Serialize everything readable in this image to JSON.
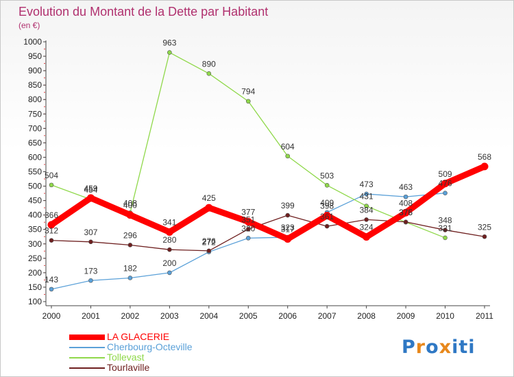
{
  "title": "Evolution du Montant de la Dette par Habitant",
  "subtitle": "(en €)",
  "logo": {
    "letters": [
      "P",
      "r",
      "o",
      "x",
      "i",
      "t",
      "i"
    ],
    "colors": [
      "#2f78c4",
      "#e8881c",
      "#2f78c4",
      "#e8881c",
      "#2f78c4",
      "#2f78c4",
      "#2f78c4"
    ]
  },
  "chart_data": {
    "type": "line",
    "title": "Evolution du Montant de la Dette par Habitant",
    "subtitle": "(en €)",
    "xlabel": "",
    "ylabel": "",
    "ylim": [
      100,
      1000
    ],
    "yticks": [
      100,
      150,
      200,
      250,
      300,
      350,
      400,
      450,
      500,
      550,
      600,
      650,
      700,
      750,
      800,
      850,
      900,
      950,
      1000
    ],
    "x": [
      "2000",
      "2001",
      "2002",
      "2003",
      "2004",
      "2005",
      "2006",
      "2007",
      "2008",
      "2009",
      "2010",
      "2011"
    ],
    "grid": false,
    "legend_position": "bottom-left",
    "series": [
      {
        "name": "LA GLACERIE",
        "color": "#ff0000",
        "values": [
          366,
          459,
          400,
          341,
          425,
          377,
          317,
          398,
          324,
          408,
          509,
          568
        ]
      },
      {
        "name": "Cherbourg-Octeville",
        "color": "#5aa0d8",
        "values": [
          143,
          173,
          182,
          200,
          272,
          320,
          323,
          409,
          473,
          463,
          476,
          null
        ]
      },
      {
        "name": "Tollevast",
        "color": "#8fd84a",
        "values": [
          504,
          454,
          408,
          963,
          890,
          794,
          604,
          503,
          431,
          375,
          321,
          null
        ]
      },
      {
        "name": "Tourlaville",
        "color": "#6e1f1f",
        "values": [
          312,
          307,
          296,
          280,
          276,
          351,
          399,
          361,
          384,
          376,
          348,
          325
        ]
      }
    ]
  }
}
